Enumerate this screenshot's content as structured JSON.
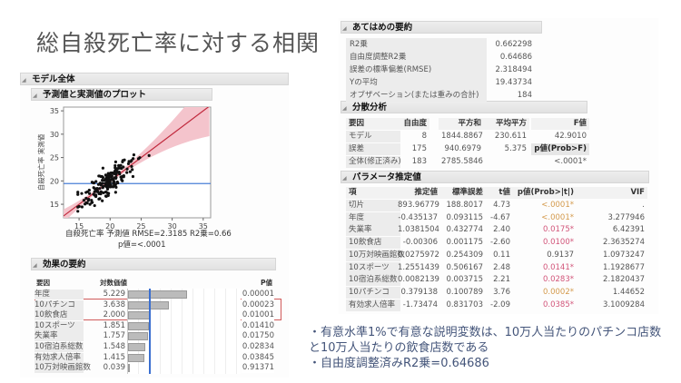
{
  "title": "総自殺死亡率に対する相関",
  "left": {
    "model_header": "モデル全体",
    "plot_header": "予測値と実測値のプロット",
    "plot": {
      "y_label": "自殺死亡率 実測値",
      "x_label": "自殺死亡率 予測値 RMSE=2.3185 R2乗=0.66",
      "p_label": "p値=<.0001",
      "x_ticks": [
        "15",
        "20",
        "25",
        "30",
        "35"
      ],
      "y_ticks": [
        "15",
        "20",
        "25",
        "30",
        "35"
      ],
      "mean_line": 19.43734,
      "colors": {
        "fit": "#c0283c",
        "band": "#f4c4cc",
        "mean": "#4a7fd6"
      }
    },
    "effects": {
      "header": "効果の要約",
      "columns": [
        "要因",
        "対数価値",
        "P値"
      ],
      "rows": [
        [
          "年度",
          "5.229",
          "0.00001"
        ],
        [
          "10パチンコ",
          "3.638",
          "0.00023"
        ],
        [
          "10飲食店",
          "2.000",
          "0.01001"
        ],
        [
          "10スポーツ",
          "1.851",
          "0.01410"
        ],
        [
          "失業率",
          "1.757",
          "0.01750"
        ],
        [
          "10宿泊系総数",
          "1.548",
          "0.02834"
        ],
        [
          "有効求人倍率",
          "1.415",
          "0.03845"
        ],
        [
          "10万対映画館数",
          "0.039",
          "0.91371"
        ]
      ],
      "highlight_color": "#d05a5a"
    }
  },
  "fit": {
    "header": "あてはめの要約",
    "rows": [
      [
        "R2乗",
        "0.662298"
      ],
      [
        "自由度調整R2乗",
        "0.64686"
      ],
      [
        "誤差の標準偏差(RMSE)",
        "2.318494"
      ],
      [
        "Yの平均",
        "19.43734"
      ],
      [
        "オブザベーション(または重みの合計)",
        "184"
      ]
    ]
  },
  "anova": {
    "header": "分散分析",
    "columns": [
      "要因",
      "自由度",
      "平方和",
      "平均平方",
      "F値"
    ],
    "rows": [
      [
        "モデル",
        "8",
        "1844.8867",
        "230.611",
        "42.9010"
      ],
      [
        "誤差",
        "175",
        "940.6979",
        "5.375",
        "p値(Prob>F)"
      ],
      [
        "全体(修正済み)",
        "183",
        "2785.5846",
        "",
        "<.0001*"
      ]
    ]
  },
  "params": {
    "header": "パラメータ推定値",
    "columns": [
      "項",
      "推定値",
      "標準誤差",
      "t値",
      "p値(Prob>|t|)",
      "VIF"
    ],
    "rows": [
      [
        "切片",
        "893.96779",
        "188.8017",
        "4.73",
        "<.0001*",
        "."
      ],
      [
        "年度",
        "-0.435137",
        "0.093115",
        "-4.67",
        "<.0001*",
        "3.277946"
      ],
      [
        "失業率",
        "1.0381504",
        "0.432774",
        "2.40",
        "0.0175*",
        "6.42391"
      ],
      [
        "10飲食店",
        "-0.00306",
        "0.001175",
        "-2.60",
        "0.0100*",
        "2.3635274"
      ],
      [
        "10万対映画館数",
        "0.0275972",
        "0.254309",
        "0.11",
        "0.9137",
        "1.0973247"
      ],
      [
        "10スポーツ",
        "1.2551439",
        "0.506167",
        "2.48",
        "0.0141*",
        "1.1928677"
      ],
      [
        "10宿泊系総数",
        "0.0082139",
        "0.003715",
        "2.21",
        "0.0283*",
        "2.1820437"
      ],
      [
        "10パチンコ",
        "0.379138",
        "0.100789",
        "3.76",
        "0.0002*",
        "1.44652"
      ],
      [
        "有効求人倍率",
        "-1.73474",
        "0.831703",
        "-2.09",
        "0.0385*",
        "3.1009284"
      ]
    ],
    "p_colors": [
      "gold",
      "gold",
      "pink",
      "pink",
      "",
      "pink",
      "pink",
      "gold",
      "pink"
    ]
  },
  "notes": [
    "・有意水準1%で有意な説明変数は、10万人当たりのパチンコ店数と10万人当たりの飲食店数である",
    "・自由度調整済みR2乗=0.64686"
  ]
}
